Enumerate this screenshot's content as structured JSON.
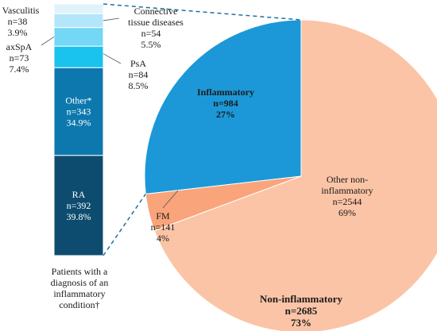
{
  "chart_data": [
    {
      "type": "pie",
      "slices": [
        {
          "label": "Inflammatory",
          "n_text": "n=984",
          "pct_text": "27%",
          "n": 984,
          "percent": 27,
          "color": "#1c98d8",
          "bold": true
        },
        {
          "label": "FM",
          "n_text": "n=141",
          "pct_text": "4%",
          "n": 141,
          "percent": 4,
          "color": "#f9a47a",
          "bold": false
        },
        {
          "label": "Other non-inflammatory",
          "label_lines": [
            "Other non-",
            "inflammatory"
          ],
          "n_text": "n=2544",
          "pct_text": "69%",
          "n": 2544,
          "percent": 69,
          "color": "#fbc4a6",
          "bold": false
        }
      ],
      "group_label": {
        "lines": [
          "Non-inflammatory",
          "n=2685",
          "73%"
        ]
      }
    },
    {
      "type": "bar",
      "stacked": true,
      "segments": [
        {
          "label": "RA",
          "n_text": "n=392",
          "pct_text": "39.8%",
          "n": 392,
          "percent": 39.8,
          "color": "#0d4c6e"
        },
        {
          "label": "Other*",
          "n_text": "n=343",
          "pct_text": "34.9%",
          "n": 343,
          "percent": 34.9,
          "color": "#0d78ad"
        },
        {
          "label": "PsA",
          "n_text": "n=84",
          "pct_text": "8.5%",
          "n": 84,
          "percent": 8.5,
          "color": "#1ac2ee"
        },
        {
          "label": "axSpA",
          "n_text": "n=73",
          "pct_text": "7.4%",
          "n": 73,
          "percent": 7.4,
          "color": "#74d7f5"
        },
        {
          "label": "Connective tissue diseases",
          "label_lines": [
            "Connective",
            "tissue diseases"
          ],
          "n_text": "n=54",
          "pct_text": "5.5%",
          "n": 54,
          "percent": 5.5,
          "color": "#b2e6f8"
        },
        {
          "label": "Vasculitis",
          "n_text": "n=38",
          "pct_text": "3.9%",
          "n": 38,
          "percent": 3.9,
          "color": "#dff3fb"
        }
      ],
      "bar_caption": [
        "Patients with a",
        "diagnosis of an",
        "inflammatory",
        "condition†"
      ]
    }
  ],
  "colors": {
    "text": "#1a1a1a",
    "dash": "#1f6f9f",
    "segment_border": "#ffffff"
  }
}
